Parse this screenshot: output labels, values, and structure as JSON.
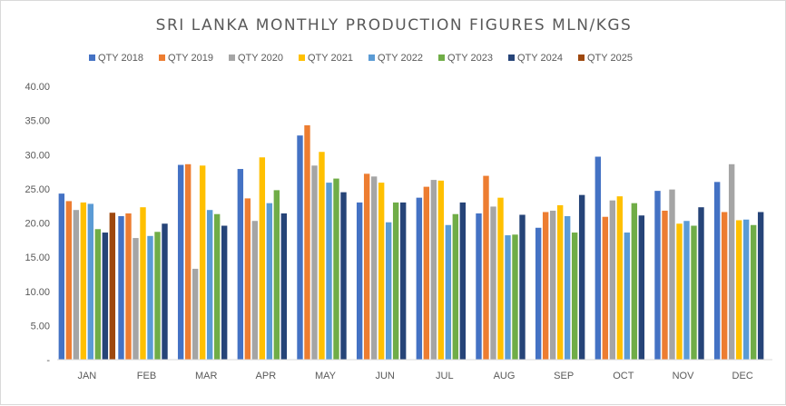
{
  "chart_data": {
    "type": "bar",
    "title": "SRI LANKA MONTHLY PRODUCTION FIGURES MLN/KGS",
    "xlabel": "",
    "ylabel": "",
    "ylim": [
      0,
      40
    ],
    "yticks": [
      "-",
      "5.00",
      "10.00",
      "15.00",
      "20.00",
      "25.00",
      "30.00",
      "35.00",
      "40.00"
    ],
    "grid": false,
    "legend_position": "top",
    "categories": [
      "JAN",
      "FEB",
      "MAR",
      "APR",
      "MAY",
      "JUN",
      "JUL",
      "AUG",
      "SEP",
      "OCT",
      "NOV",
      "DEC"
    ],
    "series": [
      {
        "name": "QTY 2018",
        "color": "#4472c4",
        "values": [
          24.3,
          21.0,
          28.5,
          27.9,
          32.8,
          23.0,
          23.7,
          21.4,
          19.3,
          29.7,
          24.7,
          26.0
        ]
      },
      {
        "name": "QTY 2019",
        "color": "#ed7d31",
        "values": [
          23.2,
          21.4,
          28.6,
          23.6,
          34.3,
          27.2,
          25.3,
          26.9,
          21.6,
          20.9,
          21.8,
          21.6
        ]
      },
      {
        "name": "QTY 2020",
        "color": "#a5a5a5",
        "values": [
          21.9,
          17.8,
          13.3,
          20.3,
          28.4,
          26.8,
          26.3,
          22.4,
          21.8,
          23.3,
          24.9,
          28.6
        ]
      },
      {
        "name": "QTY 2021",
        "color": "#ffc000",
        "values": [
          23.0,
          22.3,
          28.4,
          29.6,
          30.4,
          25.9,
          26.2,
          23.7,
          22.6,
          23.9,
          19.9,
          20.4
        ]
      },
      {
        "name": "QTY 2022",
        "color": "#5b9bd5",
        "values": [
          22.8,
          18.1,
          21.9,
          22.9,
          25.9,
          20.1,
          19.7,
          18.2,
          21.0,
          18.6,
          20.3,
          20.5
        ]
      },
      {
        "name": "QTY 2023",
        "color": "#70ad47",
        "values": [
          19.1,
          18.7,
          21.3,
          24.8,
          26.5,
          23.0,
          21.3,
          18.3,
          18.6,
          22.9,
          19.6,
          19.7
        ]
      },
      {
        "name": "QTY 2024",
        "color": "#264478",
        "values": [
          18.6,
          19.9,
          19.6,
          21.4,
          24.5,
          23.0,
          23.0,
          21.2,
          24.1,
          21.1,
          22.3,
          21.6
        ]
      },
      {
        "name": "QTY 2025",
        "color": "#9e480e",
        "values": [
          21.5,
          null,
          null,
          null,
          null,
          null,
          null,
          null,
          null,
          null,
          null,
          null
        ]
      }
    ]
  }
}
